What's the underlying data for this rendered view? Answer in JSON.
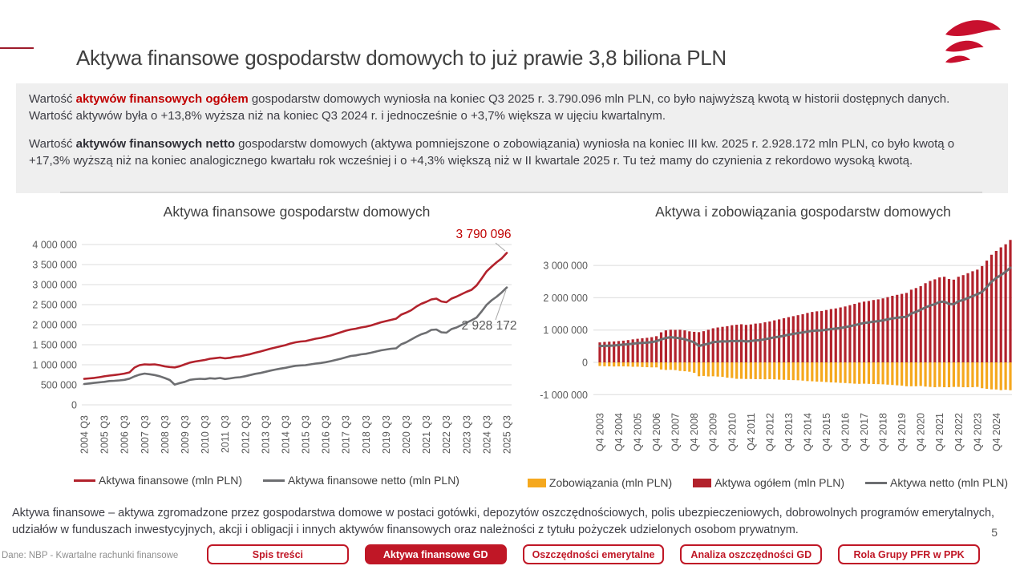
{
  "page": {
    "number": "5",
    "source": "Dane: NBP - Kwartalne rachunki finansowe"
  },
  "header": {
    "title": "Aktywa finansowe gospodarstw domowych to już prawie 3,8 biliona PLN",
    "logo_icon": "pfr-flag-icon",
    "logo_color": "#c8102e"
  },
  "summary": {
    "p1": {
      "prefix": "Wartość ",
      "bold": "aktywów finansowych ogółem",
      "rest": " gospodarstw domowych wyniosła na koniec Q3 2025 r. 3.790.096 mln PLN, co było najwyższą kwotą w historii dostępnych danych. Wartość aktywów była o +13,8% wyższa niż na koniec Q3 2024 r. i jednocześnie o +3,7% większa w ujęciu kwartalnym."
    },
    "p2": {
      "prefix": "Wartość ",
      "bold": "aktywów finansowych netto",
      "rest": " gospodarstw domowych (aktywa pomniejszone o zobowiązania) wyniosła na koniec III kw. 2025 r. 2.928.172 mln PLN, co było kwotą o +17,3% wyższą niż na koniec analogicznego kwartału rok wcześniej i o +4,3% większą niż w II kwartale 2025 r. Tu też mamy do czynienia z rekordowo wysoką kwotą."
    }
  },
  "definition": "Aktywa finansowe – aktywa zgromadzone przez gospodarstwa domowe w postaci gotówki, depozytów oszczędnościowych, polis ubezpieczeniowych, dobrowolnych programów emerytalnych, udziałów w funduszach inwestycyjnych, akcji i obligacji i innych aktywów finansowych oraz należności z tytułu pożyczek udzielonych osobom prywatnym.",
  "footer": {
    "buttons": [
      {
        "label": "Spis treści",
        "active": false
      },
      {
        "label": "Aktywa finansowe GD",
        "active": true
      },
      {
        "label": "Oszczędności emerytalne",
        "active": false
      },
      {
        "label": "Analiza oszczędności GD",
        "active": false
      },
      {
        "label": "Rola Grupy PFR w PPK",
        "active": false
      }
    ]
  },
  "colors": {
    "accent_red": "#c01726",
    "chart_red": "#b2222c",
    "chart_gray": "#6d6e71",
    "chart_yellow": "#f5a81e",
    "text_red": "#c00000",
    "grid": "#dcdcdc"
  },
  "chart_data": [
    {
      "type": "line",
      "title": "Aktywa finansowe gospodarstw domowych",
      "xlabel": "",
      "ylabel": "",
      "x_period": "quarterly 2004 Q3 – 2025 Q3",
      "xticks": [
        "2004 Q3",
        "2005 Q3",
        "2006 Q3",
        "2007 Q3",
        "2008 Q3",
        "2009 Q3",
        "2010 Q3",
        "2011 Q3",
        "2012 Q3",
        "2013 Q3",
        "2014 Q3",
        "2015 Q3",
        "2016 Q3",
        "2017 Q3",
        "2018 Q3",
        "2019 Q3",
        "2020 Q3",
        "2021 Q3",
        "2022 Q3",
        "2023 Q3",
        "2024 Q3",
        "2025 Q3"
      ],
      "ylim": [
        0,
        4000000
      ],
      "ytick_vals": [
        0,
        500000,
        1000000,
        1500000,
        2000000,
        2500000,
        3000000,
        3500000,
        4000000
      ],
      "ytick_labels": [
        "0",
        "500 000",
        "1 000 000",
        "1 500 000",
        "2 000 000",
        "2 500 000",
        "3 000 000",
        "3 500 000",
        "4 000 000"
      ],
      "grid": true,
      "legend_position": "bottom",
      "series": [
        {
          "name": "Aktywa finansowe (mln PLN)",
          "type": "line",
          "color": "#b2222c",
          "values": [
            648000,
            660000,
            672000,
            690000,
            712000,
            730000,
            745000,
            760000,
            780000,
            810000,
            930000,
            990000,
            1010000,
            1005000,
            1010000,
            990000,
            960000,
            945000,
            935000,
            965000,
            1010000,
            1055000,
            1080000,
            1100000,
            1120000,
            1150000,
            1165000,
            1180000,
            1160000,
            1175000,
            1200000,
            1210000,
            1240000,
            1265000,
            1300000,
            1330000,
            1365000,
            1400000,
            1430000,
            1460000,
            1490000,
            1530000,
            1560000,
            1580000,
            1590000,
            1620000,
            1650000,
            1670000,
            1700000,
            1730000,
            1770000,
            1810000,
            1850000,
            1880000,
            1900000,
            1930000,
            1950000,
            1980000,
            2020000,
            2060000,
            2090000,
            2120000,
            2150000,
            2250000,
            2300000,
            2360000,
            2450000,
            2520000,
            2570000,
            2630000,
            2650000,
            2580000,
            2560000,
            2650000,
            2700000,
            2760000,
            2820000,
            2870000,
            2980000,
            3150000,
            3331000,
            3450000,
            3560000,
            3655000,
            3790096
          ]
        },
        {
          "name": "Aktywa finansowe netto (mln PLN)",
          "type": "line",
          "color": "#6d6e71",
          "values": [
            520000,
            535000,
            548000,
            562000,
            575000,
            595000,
            600000,
            610000,
            625000,
            655000,
            710000,
            755000,
            780000,
            765000,
            745000,
            715000,
            670000,
            620000,
            505000,
            545000,
            575000,
            625000,
            640000,
            650000,
            645000,
            665000,
            655000,
            670000,
            645000,
            660000,
            680000,
            690000,
            715000,
            745000,
            775000,
            795000,
            825000,
            855000,
            880000,
            905000,
            925000,
            950000,
            975000,
            985000,
            990000,
            1010000,
            1030000,
            1045000,
            1065000,
            1090000,
            1120000,
            1150000,
            1185000,
            1220000,
            1235000,
            1260000,
            1275000,
            1300000,
            1330000,
            1360000,
            1380000,
            1400000,
            1410000,
            1510000,
            1560000,
            1630000,
            1700000,
            1760000,
            1800000,
            1870000,
            1880000,
            1810000,
            1800000,
            1890000,
            1930000,
            1990000,
            2050000,
            2110000,
            2180000,
            2330000,
            2496000,
            2610000,
            2700000,
            2807000,
            2928172
          ]
        }
      ],
      "annotations": [
        {
          "text": "3 790 096",
          "value": 3790096,
          "series": 0,
          "color": "#c00000"
        },
        {
          "text": "2 928 172",
          "value": 2928172,
          "series": 1,
          "color": "#595959"
        }
      ]
    },
    {
      "type": "bar",
      "title": "Aktywa i zobowiązania gospodarstw domowych",
      "xlabel": "",
      "ylabel": "",
      "x_period": "quarterly Q4 2003 – Q3 2025",
      "xticks": [
        "Q4 2003",
        "Q4 2004",
        "Q4 2005",
        "Q4 2006",
        "Q4 2007",
        "Q4 2008",
        "Q4 2009",
        "Q4 2010",
        "Q4 2011",
        "Q4 2012",
        "Q4 2013",
        "Q4 2014",
        "Q4 2015",
        "Q4 2016",
        "Q4 2017",
        "Q4 2018",
        "Q4 2019",
        "Q4 2020",
        "Q4 2021",
        "Q4 2022",
        "Q4 2023",
        "Q4 2024"
      ],
      "ylim": [
        -1000000,
        3000000
      ],
      "ytick_vals": [
        -1000000,
        0,
        1000000,
        2000000,
        3000000
      ],
      "ytick_labels": [
        "-1 000 000",
        "0",
        "1 000 000",
        "2 000 000",
        "3 000 000"
      ],
      "grid": true,
      "legend_position": "bottom",
      "series": [
        {
          "name": "Zobowiązania (mln PLN)",
          "type": "bar",
          "color": "#f5a81e",
          "values": [
            -113000,
            -120000,
            -124000,
            -128000,
            -125000,
            -124000,
            -128000,
            -137000,
            -135000,
            -145000,
            -150000,
            -155000,
            -155000,
            -220000,
            -235000,
            -230000,
            -240000,
            -265000,
            -275000,
            -290000,
            -325000,
            -430000,
            -420000,
            -435000,
            -430000,
            -440000,
            -450000,
            -475000,
            -485000,
            -510000,
            -510000,
            -515000,
            -515000,
            -520000,
            -520000,
            -525000,
            -520000,
            -525000,
            -535000,
            -540000,
            -545000,
            -550000,
            -555000,
            -565000,
            -580000,
            -585000,
            -595000,
            -600000,
            -610000,
            -620000,
            -625000,
            -635000,
            -640000,
            -650000,
            -660000,
            -665000,
            -660000,
            -665000,
            -670000,
            -675000,
            -680000,
            -690000,
            -700000,
            -710000,
            -720000,
            -740000,
            -740000,
            -740000,
            -730000,
            -750000,
            -760000,
            -770000,
            -760000,
            -770000,
            -770000,
            -760000,
            -760000,
            -770000,
            -770000,
            -770000,
            -760000,
            -800000,
            -820000,
            -835000,
            -840000,
            -860000,
            -848000,
            -861924
          ]
        },
        {
          "name": "Aktywa ogółem (mln PLN)",
          "type": "bar",
          "color": "#b2222c",
          "values": [
            618000,
            632000,
            640000,
            648000,
            660000,
            672000,
            690000,
            712000,
            730000,
            745000,
            760000,
            780000,
            810000,
            930000,
            990000,
            1010000,
            1005000,
            1010000,
            990000,
            960000,
            945000,
            935000,
            965000,
            1010000,
            1055000,
            1080000,
            1100000,
            1120000,
            1150000,
            1165000,
            1180000,
            1160000,
            1175000,
            1200000,
            1210000,
            1240000,
            1265000,
            1300000,
            1330000,
            1365000,
            1400000,
            1430000,
            1460000,
            1490000,
            1530000,
            1560000,
            1580000,
            1590000,
            1620000,
            1650000,
            1670000,
            1700000,
            1730000,
            1770000,
            1810000,
            1850000,
            1880000,
            1900000,
            1930000,
            1950000,
            1980000,
            2020000,
            2060000,
            2090000,
            2120000,
            2150000,
            2250000,
            2300000,
            2360000,
            2450000,
            2520000,
            2570000,
            2630000,
            2650000,
            2580000,
            2560000,
            2650000,
            2700000,
            2760000,
            2820000,
            2870000,
            2980000,
            3150000,
            3331000,
            3450000,
            3560000,
            3655000,
            3790096
          ]
        },
        {
          "name": "Aktywa netto (mln PLN)",
          "type": "line",
          "color": "#6d6e71",
          "values": [
            505000,
            512000,
            516000,
            520000,
            535000,
            548000,
            562000,
            575000,
            595000,
            600000,
            610000,
            625000,
            655000,
            710000,
            755000,
            780000,
            765000,
            745000,
            715000,
            670000,
            620000,
            505000,
            545000,
            575000,
            625000,
            640000,
            650000,
            645000,
            665000,
            655000,
            670000,
            645000,
            660000,
            680000,
            690000,
            715000,
            745000,
            775000,
            795000,
            825000,
            855000,
            880000,
            905000,
            925000,
            950000,
            975000,
            985000,
            990000,
            1010000,
            1030000,
            1045000,
            1065000,
            1090000,
            1120000,
            1150000,
            1185000,
            1220000,
            1235000,
            1260000,
            1275000,
            1300000,
            1330000,
            1360000,
            1380000,
            1400000,
            1410000,
            1510000,
            1560000,
            1630000,
            1700000,
            1760000,
            1800000,
            1870000,
            1880000,
            1810000,
            1800000,
            1890000,
            1930000,
            1990000,
            2050000,
            2110000,
            2180000,
            2330000,
            2496000,
            2610000,
            2700000,
            2807000,
            2928172
          ]
        }
      ]
    }
  ]
}
